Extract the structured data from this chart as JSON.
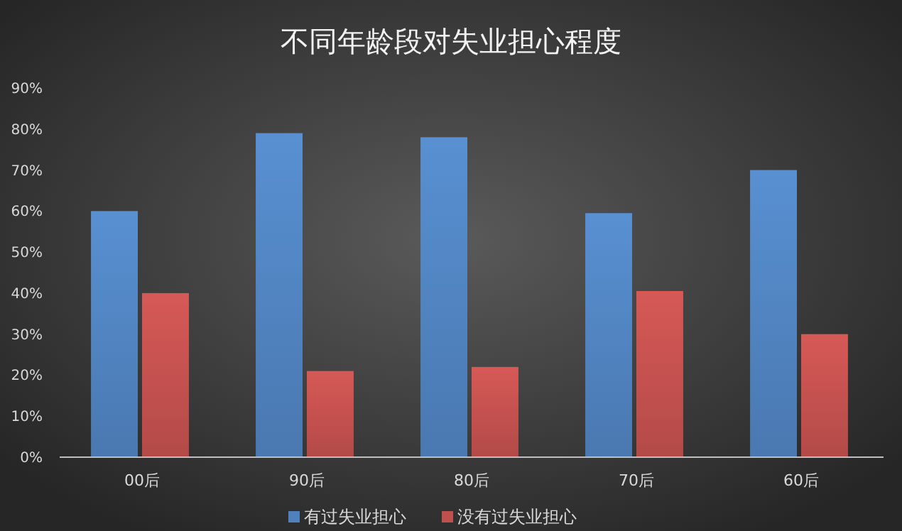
{
  "chart_data": {
    "type": "bar",
    "title": "不同年龄段对失业担心程度",
    "categories": [
      "00后",
      "90后",
      "80后",
      "70后",
      "60后"
    ],
    "series": [
      {
        "name": "有过失业担心",
        "color": "#4f81bd",
        "values": [
          60,
          79,
          78,
          59.5,
          70
        ]
      },
      {
        "name": "没有过失业担心",
        "color": "#c0504d",
        "values": [
          40,
          21,
          22,
          40.5,
          30
        ]
      }
    ],
    "ylim": [
      0,
      90
    ],
    "yticks": [
      {
        "value": 0,
        "label": "0%"
      },
      {
        "value": 10,
        "label": "10%"
      },
      {
        "value": 20,
        "label": "20%"
      },
      {
        "value": 30,
        "label": "30%"
      },
      {
        "value": 40,
        "label": "40%"
      },
      {
        "value": 50,
        "label": "50%"
      },
      {
        "value": 60,
        "label": "60%"
      },
      {
        "value": 70,
        "label": "70%"
      },
      {
        "value": 80,
        "label": "80%"
      },
      {
        "value": 90,
        "label": "90%"
      }
    ],
    "grid": false,
    "legend": "bottom"
  }
}
